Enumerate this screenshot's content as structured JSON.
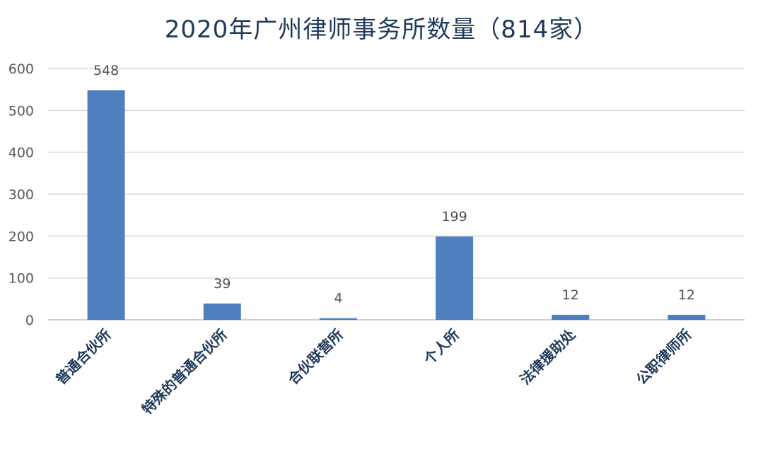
{
  "chart_data": {
    "type": "bar",
    "title": "2020年广州律师事务所数量（814家）",
    "categories": [
      "普通合伙所",
      "特殊的普通合伙所",
      "合伙联营所",
      "个人所",
      "法律援助处",
      "公职律师所"
    ],
    "values": [
      548,
      39,
      4,
      199,
      12,
      12
    ],
    "data_labels": [
      "548",
      "39",
      "4",
      "199",
      "12",
      "12"
    ],
    "ylim": [
      0,
      600
    ],
    "yticks": [
      0,
      100,
      200,
      300,
      400,
      500,
      600
    ],
    "ytick_labels": [
      "0",
      "100",
      "200",
      "300",
      "400",
      "500",
      "600"
    ],
    "xlabel": "",
    "ylabel": "",
    "grid": true,
    "bar_color": "#4f7fbf",
    "grid_color": "#d9d9d9"
  }
}
